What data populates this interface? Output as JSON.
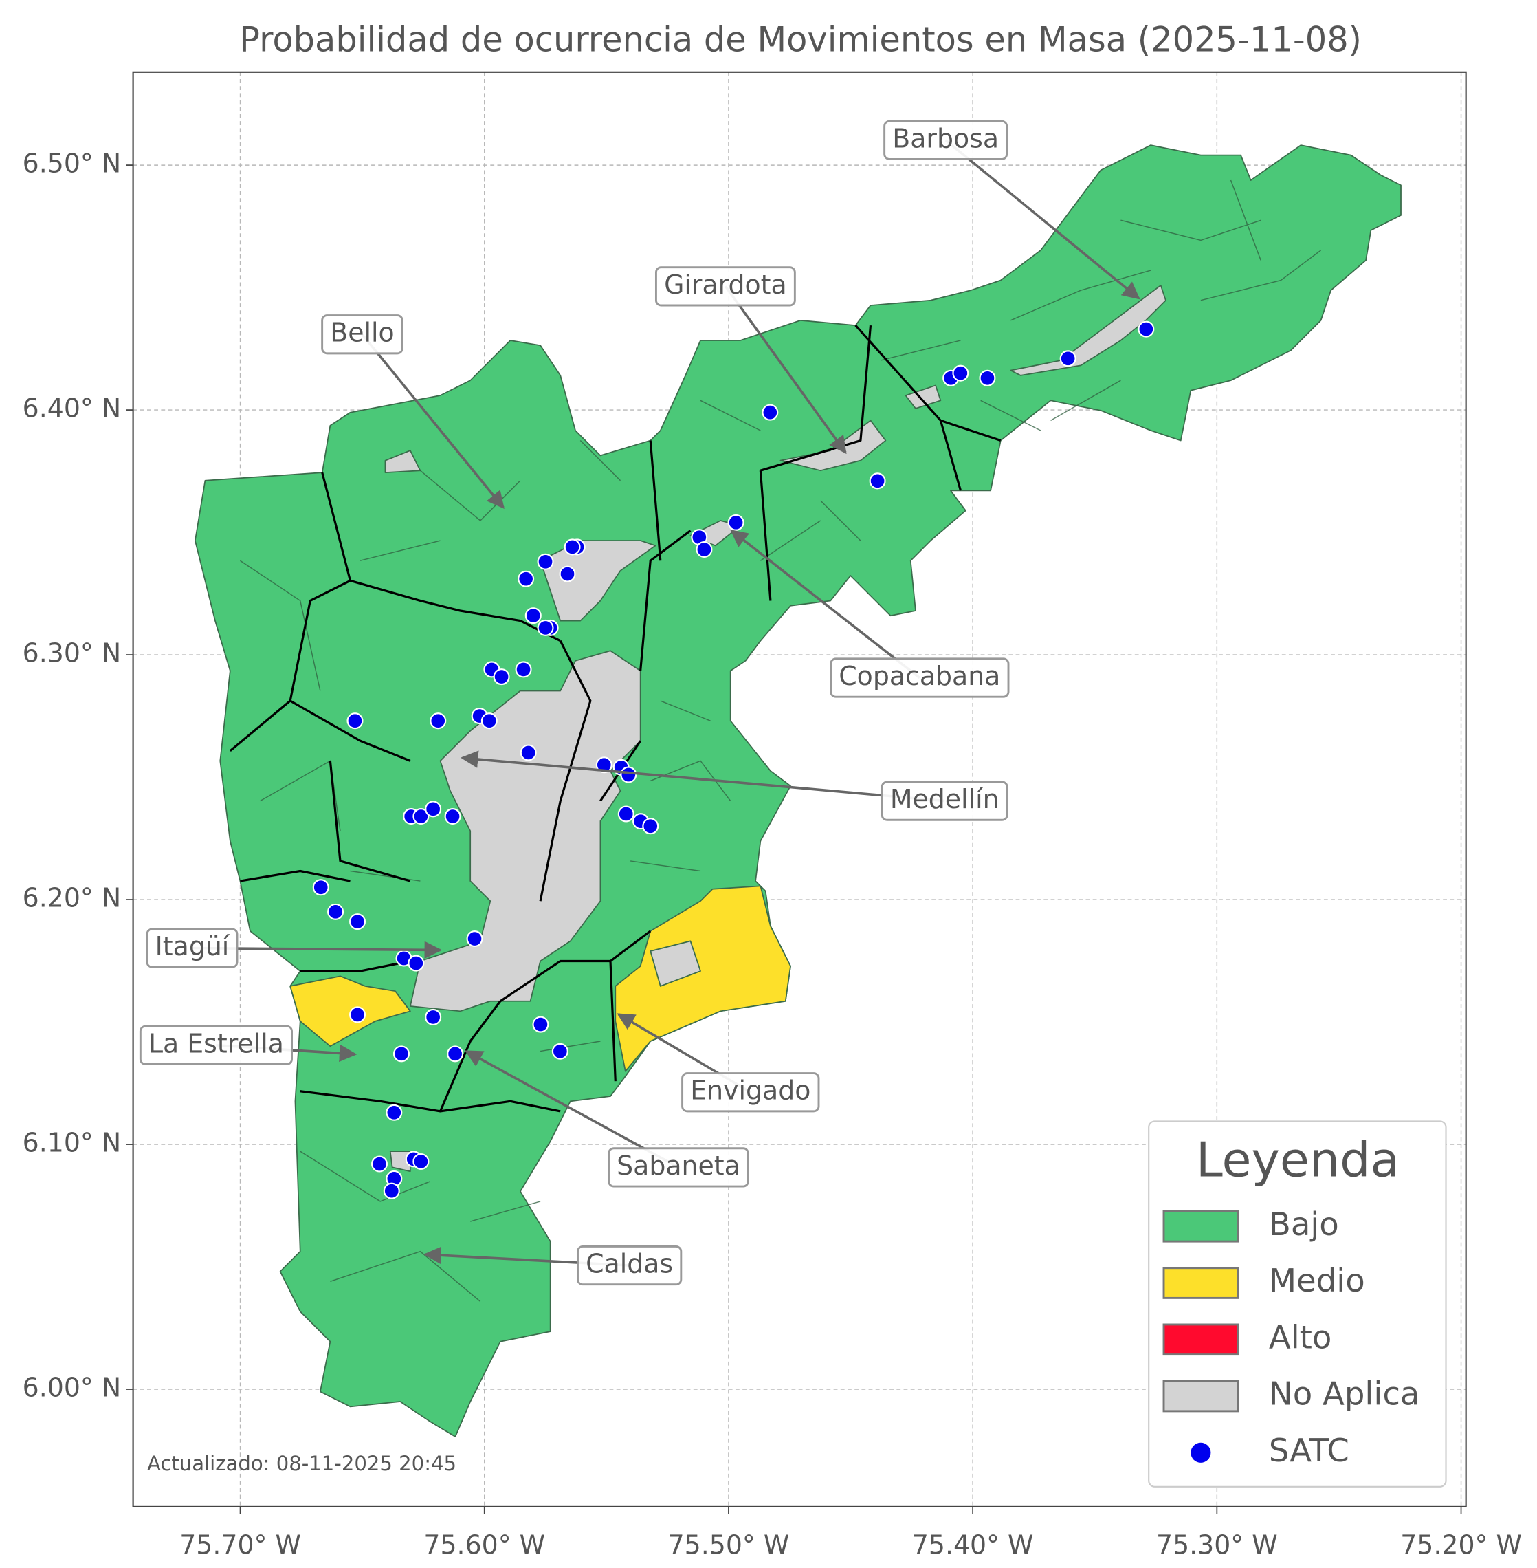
{
  "chart_data": {
    "type": "map",
    "title": "Probabilidad de ocurrencia de Movimientos en Masa (2025-11-08)",
    "xlim": [
      -75.7439,
      -75.198
    ],
    "ylim": [
      5.952,
      6.538
    ],
    "xticks": [
      {
        "value": -75.7,
        "label": "75.70° W"
      },
      {
        "value": -75.6,
        "label": "75.60° W"
      },
      {
        "value": -75.5,
        "label": "75.50° W"
      },
      {
        "value": -75.4,
        "label": "75.40° W"
      },
      {
        "value": -75.3,
        "label": "75.30° W"
      },
      {
        "value": -75.2,
        "label": "75.20° W"
      }
    ],
    "yticks": [
      {
        "value": 6.0,
        "label": "6.00° N"
      },
      {
        "value": 6.1,
        "label": "6.10° N"
      },
      {
        "value": 6.2,
        "label": "6.20° N"
      },
      {
        "value": 6.3,
        "label": "6.30° N"
      },
      {
        "value": 6.4,
        "label": "6.40° N"
      },
      {
        "value": 6.5,
        "label": "6.50° N"
      }
    ],
    "grid": true,
    "legend_title": "Leyenda",
    "legend_position": "lower right",
    "categories": [
      {
        "name": "Bajo",
        "color": "#4bc878"
      },
      {
        "name": "Medio",
        "color": "#fde02a"
      },
      {
        "name": "Alto",
        "color": "#ff0a2e"
      },
      {
        "name": "No Aplica",
        "color": "#d3d3d3"
      }
    ],
    "series": [
      {
        "name": "SATC",
        "color": "#0000ee",
        "x": [
          -75.483,
          -75.409,
          -75.405,
          -75.394,
          -75.361,
          -75.329,
          -75.439,
          -75.497,
          -75.512,
          -75.51,
          -75.562,
          -75.564,
          -75.575,
          -75.583,
          -75.566,
          -75.58,
          -75.573,
          -75.575,
          -75.597,
          -75.593,
          -75.584,
          -75.653,
          -75.619,
          -75.602,
          -75.598,
          -75.582,
          -75.551,
          -75.544,
          -75.541,
          -75.542,
          -75.536,
          -75.532,
          -75.63,
          -75.626,
          -75.621,
          -75.613,
          -75.667,
          -75.661,
          -75.652,
          -75.604,
          -75.633,
          -75.628,
          -75.652,
          -75.621,
          -75.577,
          -75.569,
          -75.634,
          -75.612,
          -75.637,
          -75.643,
          -75.629,
          -75.626,
          -75.637,
          -75.638
        ],
        "y": [
          6.399,
          6.413,
          6.415,
          6.413,
          6.421,
          6.433,
          6.371,
          6.354,
          6.348,
          6.343,
          6.344,
          6.344,
          6.338,
          6.331,
          6.333,
          6.316,
          6.311,
          6.311,
          6.294,
          6.291,
          6.294,
          6.273,
          6.273,
          6.275,
          6.273,
          6.26,
          6.255,
          6.254,
          6.251,
          6.235,
          6.232,
          6.23,
          6.234,
          6.234,
          6.237,
          6.234,
          6.205,
          6.195,
          6.191,
          6.184,
          6.176,
          6.174,
          6.153,
          6.152,
          6.149,
          6.138,
          6.137,
          6.137,
          6.113,
          6.092,
          6.094,
          6.093,
          6.086,
          6.081
        ]
      }
    ],
    "annotations": [
      "Barbosa",
      "Girardota",
      "Bello",
      "Copacabana",
      "Medellín",
      "Itagüí",
      "La Estrella",
      "Envigado",
      "Sabaneta",
      "Caldas"
    ],
    "footer": "Actualizado: 08-11-2025 20:45"
  }
}
